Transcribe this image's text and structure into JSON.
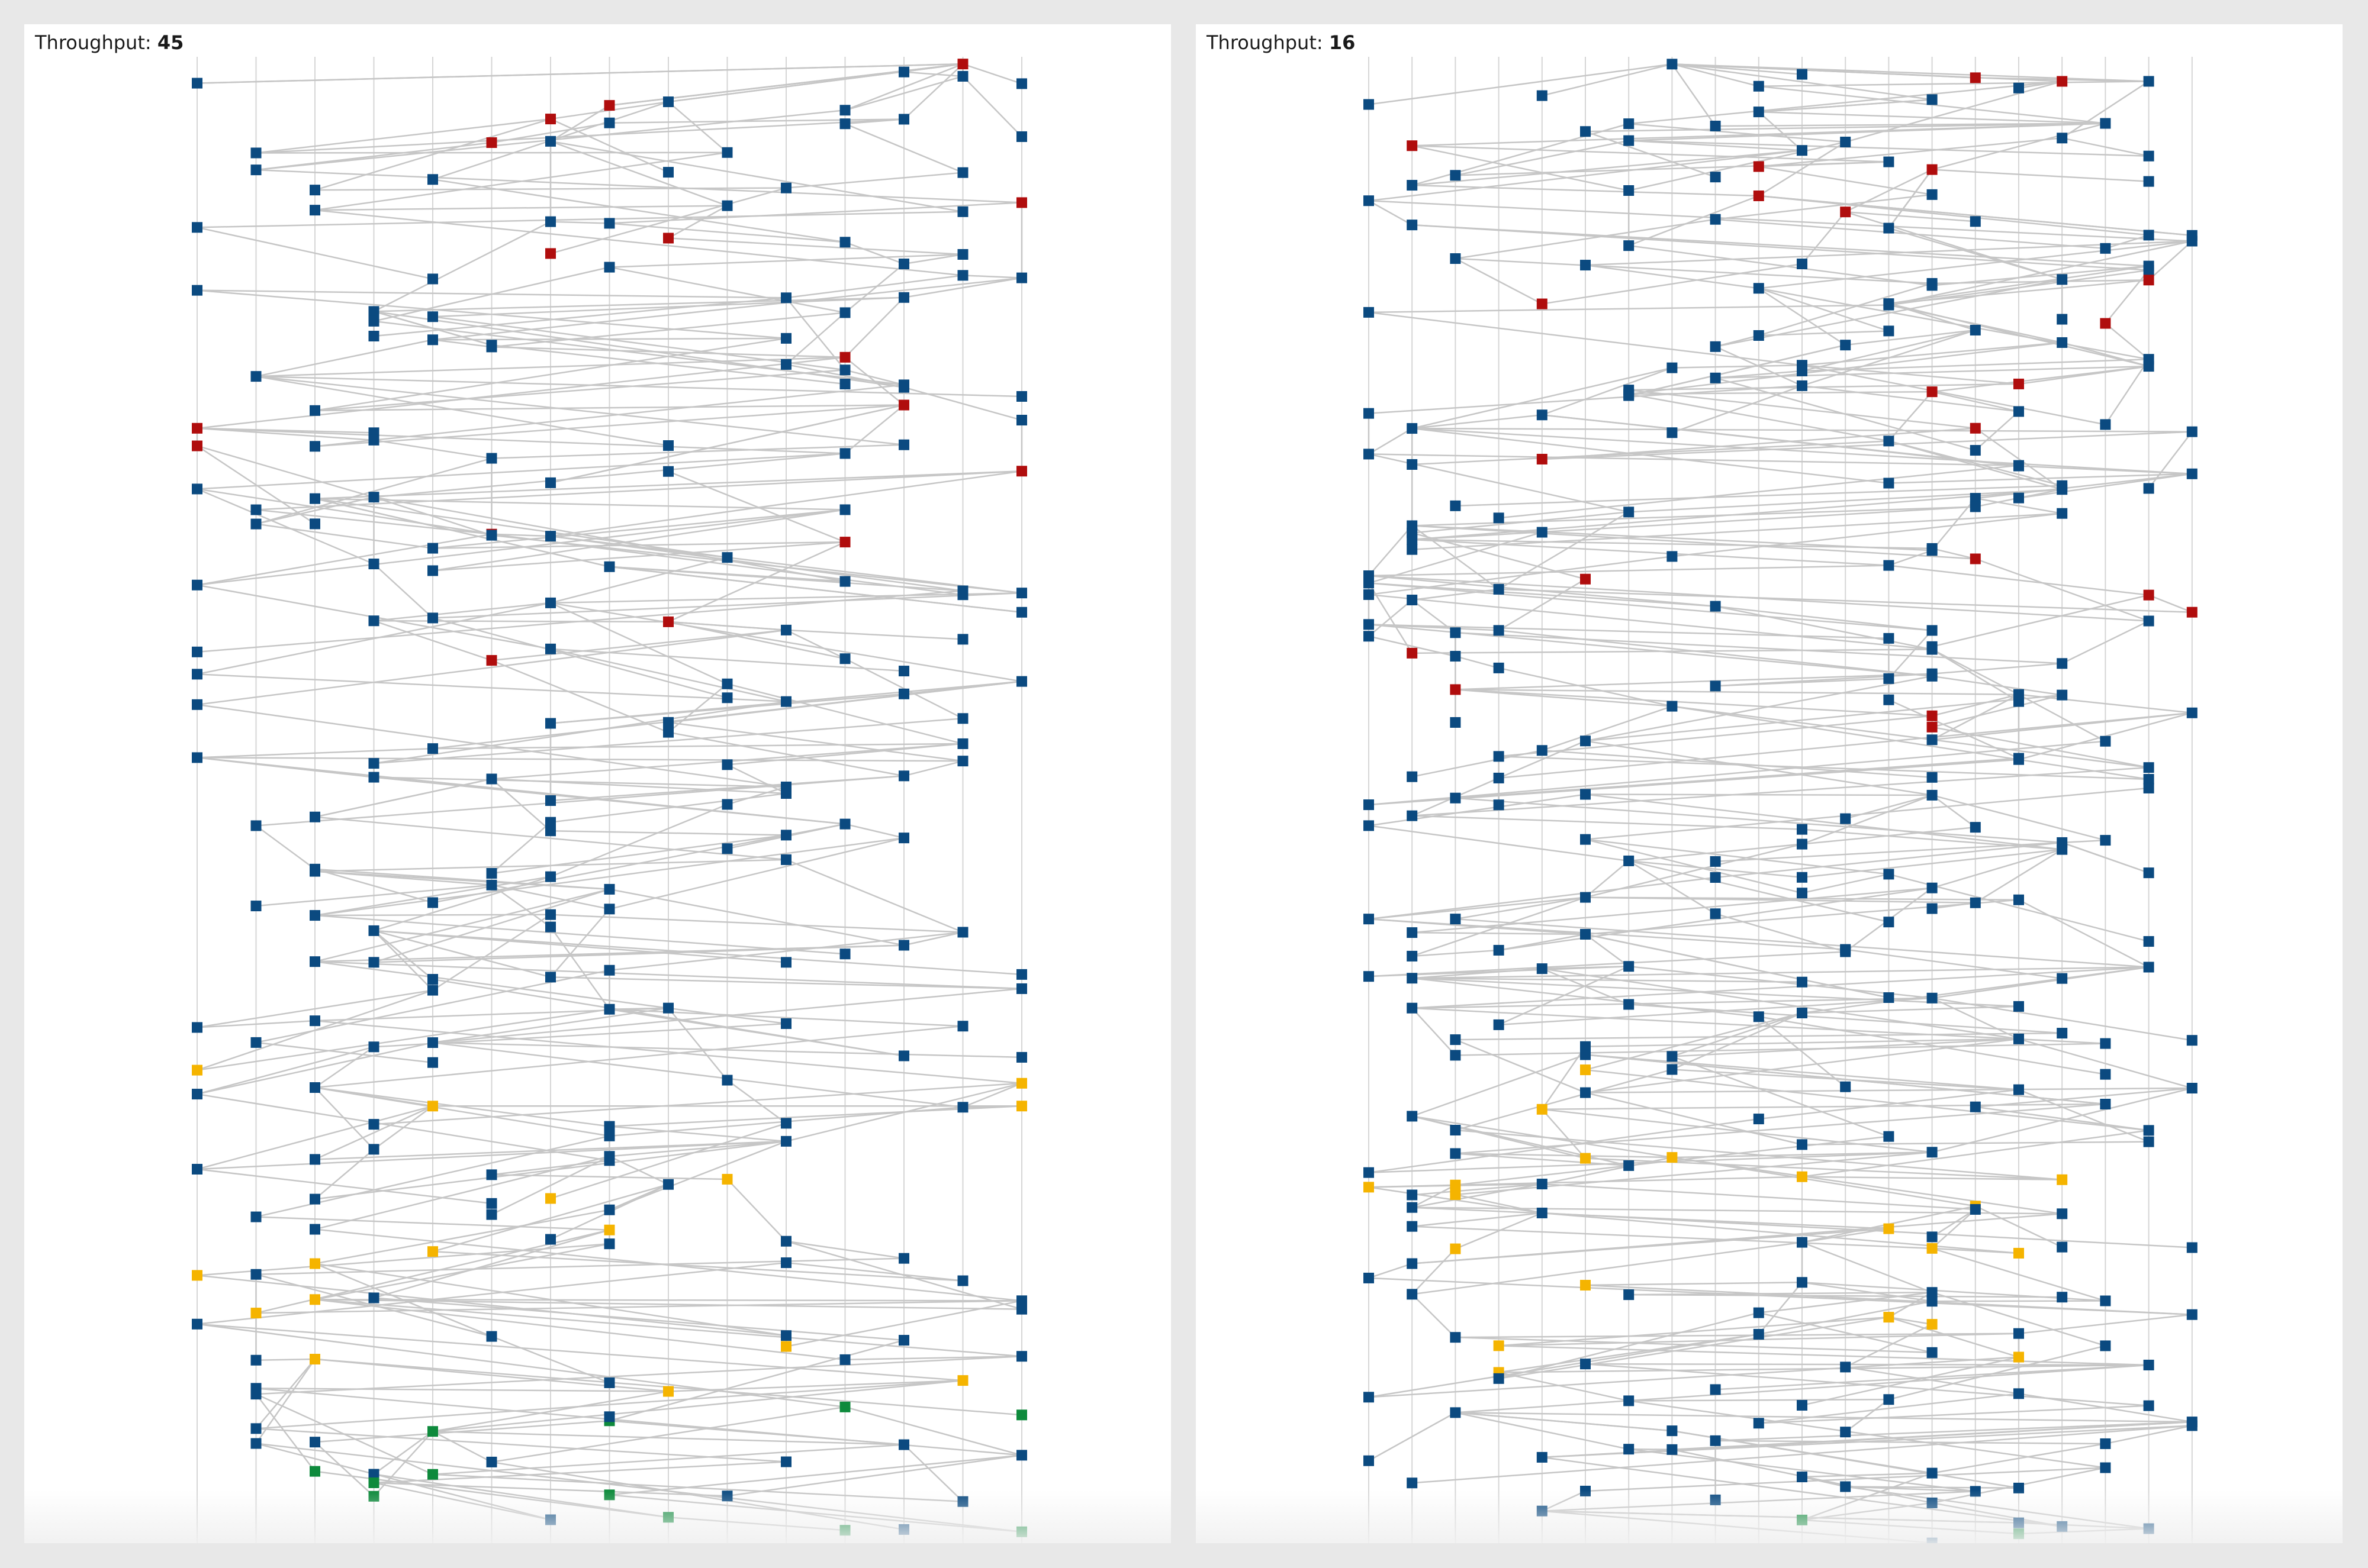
{
  "colors": {
    "background": "#e8e8e8",
    "panel": "#ffffff",
    "lane": "#d6d6d6",
    "edge": "#c6c6c6",
    "node_normal": "#0b4a80",
    "node_blocked": "#b00d0d",
    "node_waiting": "#f5b400",
    "node_done": "#0e8a3c"
  },
  "panels": [
    {
      "id": "left",
      "throughput_label": "Throughput:",
      "throughput_value": "45",
      "lane_count": 15,
      "node_count": 260,
      "red_nodes": 16,
      "yellow_nodes": 16,
      "green_nodes": 12,
      "seed": 7
    },
    {
      "id": "right",
      "throughput_label": "Throughput:",
      "throughput_value": "16",
      "lane_count": 20,
      "node_count": 330,
      "red_nodes": 22,
      "yellow_nodes": 20,
      "green_nodes": 2,
      "seed": 23
    }
  ]
}
